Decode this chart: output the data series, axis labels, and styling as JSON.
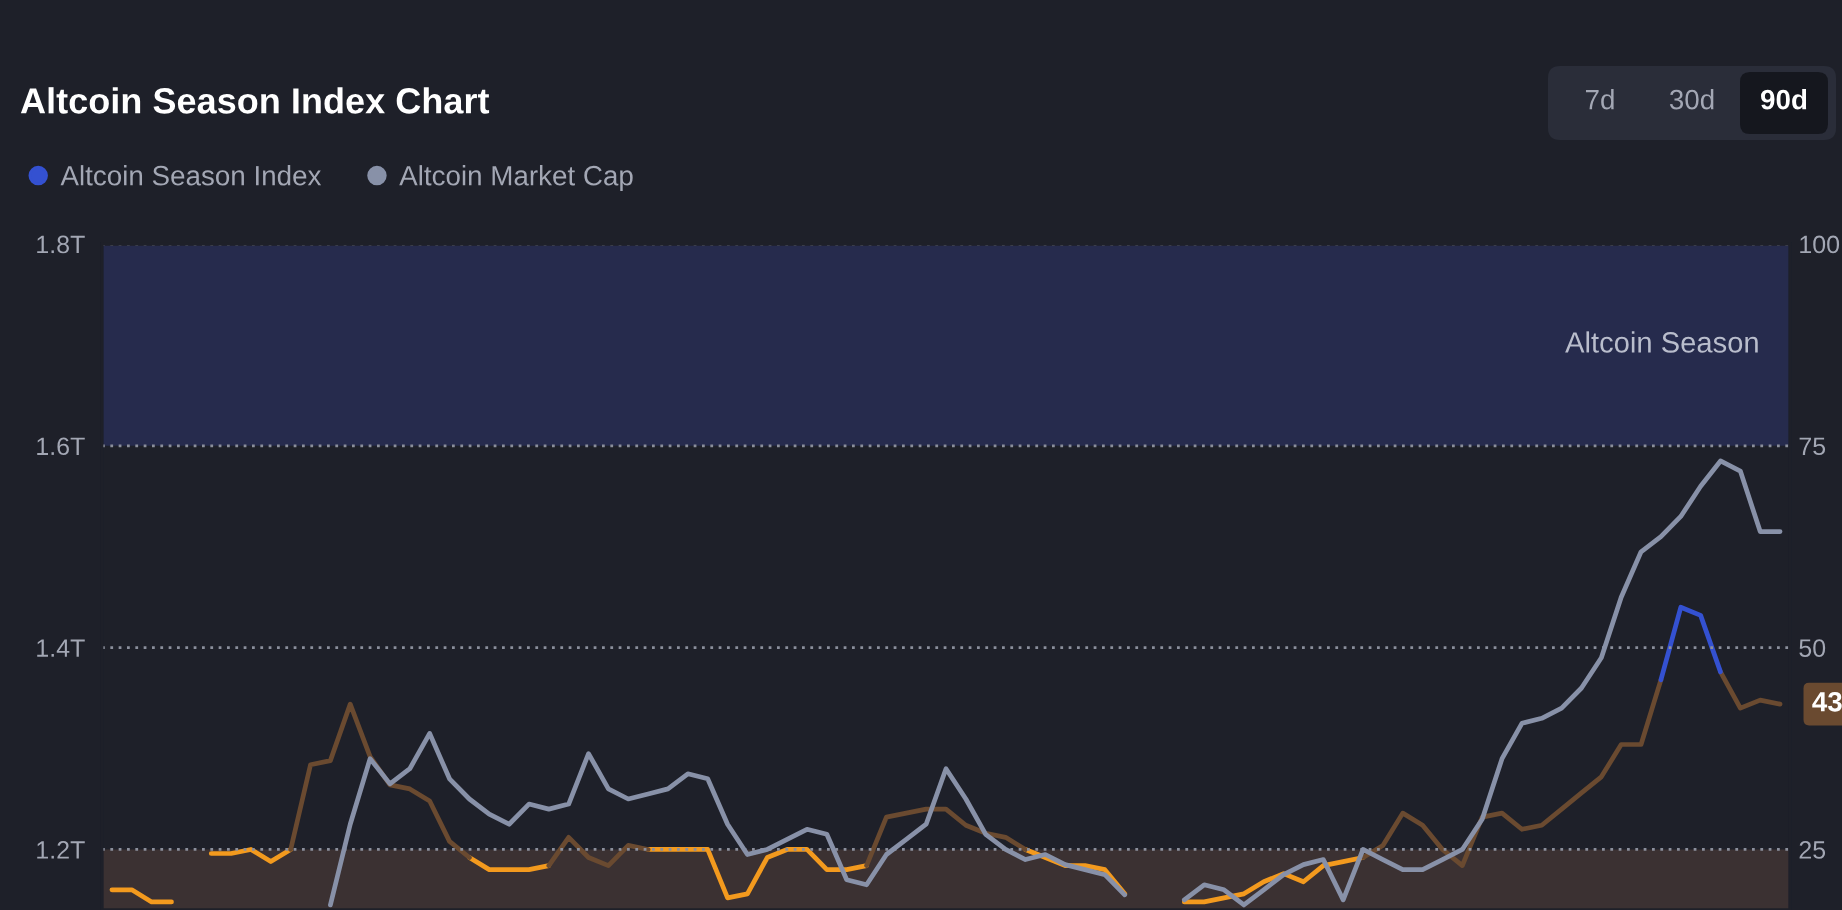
{
  "chart_data": {
    "type": "line",
    "title": "Altcoin Season Index Chart",
    "categories": [
      null,
      null,
      null,
      null,
      null,
      null,
      null,
      null,
      null,
      null,
      null,
      null,
      null,
      null,
      null,
      null,
      null,
      null,
      null,
      null,
      null,
      null,
      null,
      null,
      null,
      null,
      null,
      null,
      null,
      null,
      null,
      null,
      null,
      null,
      null,
      null,
      null,
      null,
      null,
      null,
      null,
      null,
      null,
      null,
      null,
      null,
      null,
      null,
      null,
      null,
      null,
      null,
      null,
      null,
      null,
      null,
      null,
      null,
      null,
      null,
      null,
      null,
      null,
      null,
      null,
      null,
      null,
      null,
      null,
      null,
      null,
      null,
      null,
      null,
      null,
      null,
      null,
      null,
      null,
      null,
      null,
      null,
      null,
      null,
      null
    ],
    "series": [
      {
        "color": "#f39a1e",
        "axis": "y2",
        "values": [
          20,
          20,
          18.5,
          18.5,
          null,
          24.5,
          24.5,
          25,
          23.5,
          25,
          null,
          null,
          null,
          null,
          null,
          null,
          null,
          null,
          24,
          22.5,
          22.5,
          22.5,
          23,
          null,
          null,
          null,
          null,
          25,
          25,
          25,
          25,
          19,
          19.5,
          24,
          25,
          25,
          22.5,
          22.5,
          23,
          null,
          null,
          null,
          null,
          null,
          null,
          null,
          25,
          24,
          23,
          23,
          22.5,
          19.5,
          null,
          null,
          18.5,
          18.5,
          19,
          19.5,
          21,
          22,
          21,
          23,
          23.5,
          24,
          null,
          null,
          null,
          null,
          null,
          null,
          null,
          null,
          null,
          null,
          null,
          null,
          null,
          null,
          null,
          null,
          null,
          null,
          null,
          null,
          null
        ]
      },
      {
        "color": "#6a4a30",
        "axis": "y2",
        "values": [
          null,
          null,
          null,
          null,
          null,
          null,
          null,
          null,
          null,
          25,
          35.5,
          36,
          43,
          36.5,
          33,
          32.5,
          31,
          26,
          24,
          null,
          null,
          null,
          23,
          26.5,
          24,
          23,
          25.5,
          25,
          null,
          null,
          null,
          null,
          null,
          null,
          null,
          null,
          null,
          null,
          23,
          29,
          29.5,
          30,
          30,
          28,
          27,
          26.5,
          25,
          null,
          null,
          null,
          null,
          null,
          null,
          null,
          null,
          null,
          null,
          null,
          null,
          null,
          null,
          null,
          null,
          24,
          25.5,
          29.5,
          28,
          25,
          23,
          29,
          29.5,
          27.5,
          28,
          30,
          32,
          34,
          38,
          38,
          46,
          null,
          null,
          47,
          42.5,
          43.5,
          43
        ],
        "value_labels": [
          null,
          null,
          null,
          null,
          null,
          null,
          null,
          null,
          null,
          null,
          null,
          null,
          null,
          null,
          null,
          null,
          null,
          null,
          null,
          null,
          null,
          null,
          null,
          null,
          null,
          null,
          null,
          null,
          null,
          null,
          null,
          null,
          null,
          null,
          null,
          null,
          null,
          null,
          null,
          null,
          null,
          null,
          null,
          null,
          null,
          null,
          null,
          null,
          null,
          null,
          null,
          null,
          null,
          null,
          null,
          null,
          null,
          null,
          null,
          null,
          null,
          null,
          null,
          null,
          null,
          null,
          null,
          null,
          null,
          null,
          null,
          null,
          null,
          null,
          null,
          null,
          null,
          null,
          null,
          null,
          null,
          null,
          null,
          null,
          "43"
        ]
      },
      {
        "name": "Altcoin Season Index",
        "color": "#3451d1",
        "axis": "y2",
        "values": [
          null,
          null,
          null,
          null,
          null,
          null,
          null,
          null,
          null,
          null,
          null,
          null,
          null,
          null,
          null,
          null,
          null,
          null,
          null,
          null,
          null,
          null,
          null,
          null,
          null,
          null,
          null,
          null,
          null,
          null,
          null,
          null,
          null,
          null,
          null,
          null,
          null,
          null,
          null,
          null,
          null,
          null,
          null,
          null,
          null,
          null,
          null,
          null,
          null,
          null,
          null,
          null,
          null,
          null,
          null,
          null,
          null,
          null,
          null,
          null,
          null,
          null,
          null,
          null,
          null,
          null,
          null,
          null,
          null,
          null,
          null,
          null,
          null,
          null,
          null,
          null,
          null,
          null,
          46,
          55,
          54,
          47,
          null,
          null,
          null
        ]
      },
      {
        "name": "Altcoin Market Cap",
        "color": "#8891a8",
        "values": [
          null,
          null,
          null,
          null,
          null,
          null,
          null,
          null,
          null,
          null,
          null,
          1.145,
          1.225,
          1.29,
          1.265,
          1.28,
          1.315,
          1.27,
          1.25,
          1.235,
          1.225,
          1.245,
          1.24,
          1.245,
          1.295,
          1.26,
          1.25,
          1.255,
          1.26,
          1.275,
          1.27,
          1.225,
          1.195,
          1.2,
          1.21,
          1.22,
          1.215,
          1.17,
          1.165,
          1.195,
          1.21,
          1.225,
          1.28,
          1.25,
          1.215,
          1.2,
          1.19,
          1.195,
          1.185,
          1.18,
          1.175,
          1.155,
          null,
          null,
          1.15,
          1.165,
          1.16,
          1.145,
          1.16,
          1.175,
          1.185,
          1.19,
          1.15,
          1.2,
          1.19,
          1.18,
          1.18,
          1.19,
          1.2,
          1.23,
          1.29,
          1.325,
          1.33,
          1.34,
          1.36,
          1.39,
          1.45,
          1.495,
          1.51,
          1.53,
          1.56,
          1.585,
          1.575,
          1.515,
          1.515
        ]
      }
    ],
    "ylim": [
      1.14,
      1.8
    ],
    "yticks": [
      {
        "value": 1.2,
        "label": "1.2T"
      },
      {
        "value": 1.4,
        "label": "1.4T"
      },
      {
        "value": 1.6,
        "label": "1.6T"
      },
      {
        "value": 1.8,
        "label": "1.8T"
      }
    ],
    "y2lim": [
      17.5,
      100
    ],
    "y2ticks": [
      25,
      50,
      75,
      100
    ],
    "grid": "y",
    "legend": "top left",
    "bands": [
      {
        "axis": "y2",
        "from": 75,
        "to": 100,
        "label": "Altcoin Season",
        "color": "#262b4d"
      },
      {
        "axis": "y2",
        "from": 17.5,
        "to": 25,
        "color": "#3b3132"
      }
    ],
    "annotations": [
      "7d",
      "30d",
      "90d"
    ]
  }
}
